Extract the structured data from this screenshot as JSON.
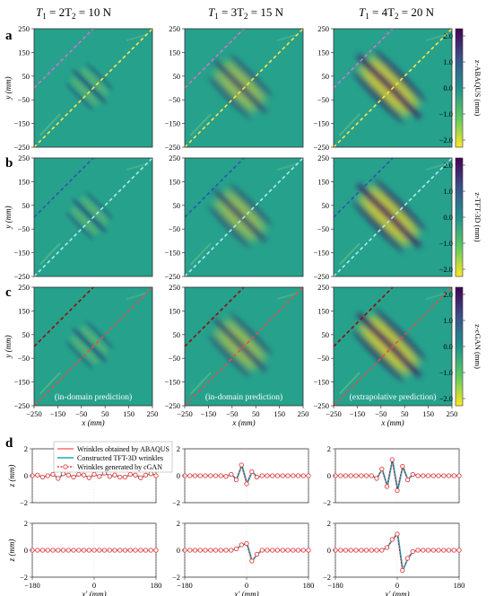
{
  "figure": {
    "column_titles": [
      {
        "pre": "T",
        "s1": "1",
        "mid": " = 2T",
        "s2": "2",
        "post": " = 10 N"
      },
      {
        "pre": "T",
        "s1": "1",
        "mid": " = 3T",
        "s2": "2",
        "post": " = 15 N"
      },
      {
        "pre": "T",
        "s1": "1",
        "mid": " = 4T",
        "s2": "2",
        "post": " = 20 N"
      }
    ],
    "panel_letters": [
      "a",
      "b",
      "c",
      "d"
    ],
    "rows": [
      {
        "colorbar_label": "z-ABAQUS (mm)",
        "upper_line": "#cc77cc",
        "lower_line": "#ffe14a",
        "captions": [
          "",
          "",
          ""
        ]
      },
      {
        "colorbar_label": "z-TFT-3D (mm)",
        "upper_line": "#2c56b0",
        "lower_line": "#a8ecf0",
        "captions": [
          "",
          "",
          ""
        ]
      },
      {
        "colorbar_label": "z-cGAN (mm)",
        "upper_line": "#8b1010",
        "lower_line": "#e05050",
        "captions": [
          "(in-domain prediction)",
          "(in-domain prediction)",
          "(extrapolative prediction)"
        ]
      }
    ],
    "colorbar_ticks": [
      "2.0",
      "1.0",
      "0.0",
      "−1.0",
      "−2.0"
    ],
    "colors": {
      "background": "#26a18c",
      "ridge_pos": "#f4e11c",
      "ridge_neg": "#3a0a5c"
    },
    "y_ticks": [
      "250",
      "150",
      "50",
      "−50",
      "−150",
      "−250"
    ],
    "x_ticks": [
      "−250",
      "−150",
      "−50",
      "50",
      "150",
      "250"
    ],
    "y_label": "y (mm)",
    "x_label": "x (mm)",
    "line_plots": {
      "legend": [
        "Wrinkles obtained by ABAQUS",
        "Constructed TFT-3D wrinkles",
        "Wrinkles generated by cGAN"
      ],
      "legend_colors": [
        "#ff6e6e",
        "#2aa0b8",
        "#e34040"
      ],
      "y_ticks": [
        "2",
        "0",
        "−2"
      ],
      "y_label": "z (mm)",
      "x_ticks": [
        "−180",
        "0",
        "180"
      ],
      "x_label": "x' (mm)"
    }
  },
  "chart_data": [
    {
      "type": "line",
      "title": "",
      "xlabel": "x' (mm)",
      "ylabel": "z (mm)",
      "xlim": [
        -180,
        180
      ],
      "ylim": [
        -2,
        2
      ],
      "x": [
        -180,
        -165,
        -150,
        -135,
        -120,
        -105,
        -90,
        -75,
        -60,
        -45,
        -30,
        -15,
        0,
        15,
        30,
        45,
        60,
        75,
        90,
        105,
        120,
        135,
        150,
        165,
        180
      ],
      "series": [
        {
          "name": "Wrinkles generated by cGAN",
          "values": [
            0,
            0.05,
            -0.1,
            0,
            0.1,
            -0.2,
            0.15,
            0.05,
            -0.1,
            0.1,
            0.05,
            -0.15,
            0.1,
            -0.05,
            0.2,
            -0.05,
            0.05,
            -0.1,
            -0.1,
            0.1,
            0.05,
            -0.15,
            0.05,
            0.15,
            0
          ]
        }
      ]
    },
    {
      "type": "line",
      "title": "",
      "xlabel": "x' (mm)",
      "ylabel": "z (mm)",
      "xlim": [
        -180,
        180
      ],
      "ylim": [
        -2,
        2
      ],
      "x": [
        -180,
        -165,
        -150,
        -135,
        -120,
        -105,
        -90,
        -75,
        -60,
        -45,
        -30,
        -15,
        0,
        15,
        30,
        45,
        60,
        75,
        90,
        105,
        120,
        135,
        150,
        165,
        180
      ],
      "series": [
        {
          "name": "Wrinkles generated by cGAN",
          "values": [
            0,
            0,
            0,
            0,
            0,
            0,
            0,
            0,
            -0.05,
            0.1,
            -0.3,
            0.8,
            -0.6,
            0.3,
            -0.1,
            0,
            0,
            0,
            0,
            0,
            0,
            0,
            0,
            0,
            0
          ]
        }
      ]
    },
    {
      "type": "line",
      "title": "",
      "xlabel": "x' (mm)",
      "ylabel": "z (mm)",
      "xlim": [
        -180,
        180
      ],
      "ylim": [
        -2,
        2
      ],
      "x": [
        -180,
        -165,
        -150,
        -135,
        -120,
        -105,
        -90,
        -75,
        -60,
        -45,
        -30,
        -15,
        0,
        15,
        30,
        45,
        60,
        75,
        90,
        105,
        120,
        135,
        150,
        165,
        180
      ],
      "series": [
        {
          "name": "Wrinkles generated by cGAN",
          "values": [
            0,
            0,
            0,
            0,
            0,
            0,
            0,
            0,
            -0.2,
            0.5,
            -0.8,
            1.2,
            -1.1,
            0.7,
            -0.3,
            0.1,
            0,
            0,
            0,
            0,
            0,
            0,
            0,
            0,
            0
          ]
        }
      ]
    },
    {
      "type": "line",
      "title": "",
      "xlabel": "x' (mm)",
      "ylabel": "z (mm)",
      "xlim": [
        -180,
        180
      ],
      "ylim": [
        -2,
        2
      ],
      "x": [
        -180,
        -165,
        -150,
        -135,
        -120,
        -105,
        -90,
        -75,
        -60,
        -45,
        -30,
        -15,
        0,
        15,
        30,
        45,
        60,
        75,
        90,
        105,
        120,
        135,
        150,
        165,
        180
      ],
      "series": [
        {
          "name": "Wrinkles generated by cGAN",
          "values": [
            0,
            0,
            0,
            0,
            0,
            0,
            0,
            0,
            0,
            0,
            0,
            0,
            0,
            0,
            0,
            0,
            0,
            0,
            0,
            0,
            0,
            0,
            0,
            0,
            0
          ]
        }
      ]
    },
    {
      "type": "line",
      "title": "",
      "xlabel": "x' (mm)",
      "ylabel": "z (mm)",
      "xlim": [
        -180,
        180
      ],
      "ylim": [
        -2,
        2
      ],
      "x": [
        -180,
        -165,
        -150,
        -135,
        -120,
        -105,
        -90,
        -75,
        -60,
        -45,
        -30,
        -15,
        0,
        15,
        30,
        45,
        60,
        75,
        90,
        105,
        120,
        135,
        150,
        165,
        180
      ],
      "series": [
        {
          "name": "Wrinkles generated by cGAN",
          "values": [
            0,
            0,
            0,
            0,
            0,
            0,
            0,
            0,
            0,
            0,
            0.1,
            0.4,
            0.5,
            -0.8,
            -0.3,
            0,
            0,
            0,
            0,
            0,
            0,
            0,
            0,
            0,
            0
          ]
        }
      ]
    },
    {
      "type": "line",
      "title": "",
      "xlabel": "x' (mm)",
      "ylabel": "z (mm)",
      "xlim": [
        -180,
        180
      ],
      "ylim": [
        -2,
        2
      ],
      "x": [
        -180,
        -165,
        -150,
        -135,
        -120,
        -105,
        -90,
        -75,
        -60,
        -45,
        -30,
        -15,
        0,
        15,
        30,
        45,
        60,
        75,
        90,
        105,
        120,
        135,
        150,
        165,
        180
      ],
      "series": [
        {
          "name": "Wrinkles generated by cGAN",
          "values": [
            0,
            0,
            0,
            0,
            0,
            0,
            0,
            0,
            0,
            0,
            0.2,
            0.8,
            1.2,
            -1.5,
            -0.6,
            -0.1,
            0,
            0,
            0,
            0,
            0,
            0,
            0,
            0,
            0
          ]
        }
      ]
    }
  ]
}
